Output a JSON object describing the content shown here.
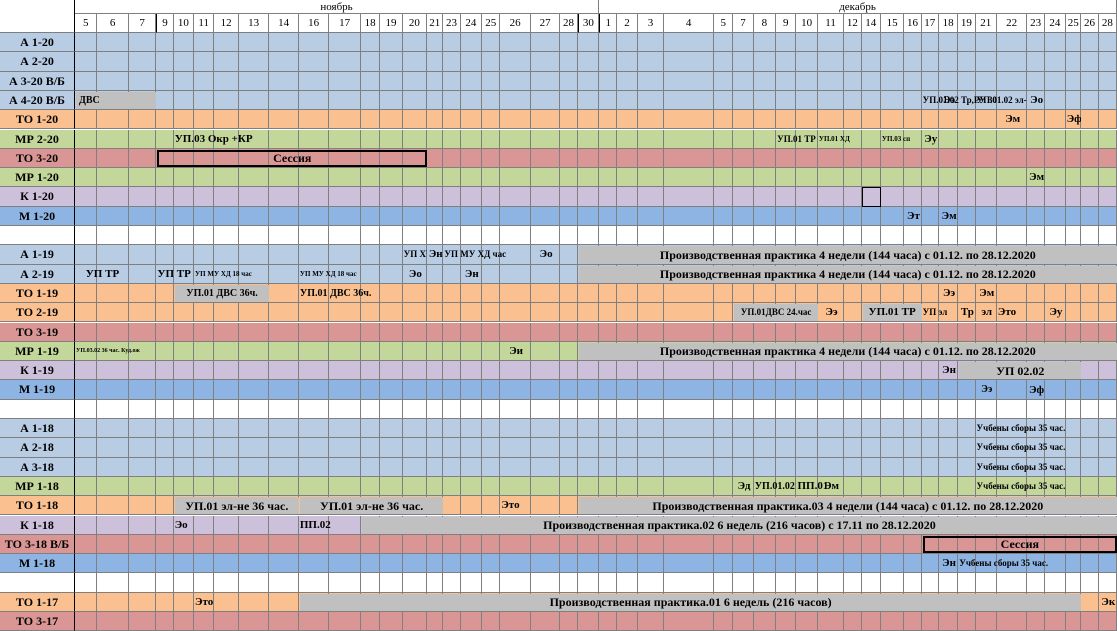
{
  "months": {
    "november": "ноябрь",
    "december": "декабрь"
  },
  "days": [
    "5",
    "6",
    "7",
    "9",
    "10",
    "11",
    "12",
    "13",
    "14",
    "16",
    "17",
    "18",
    "19",
    "20",
    "21",
    "23",
    "24",
    "25",
    "26",
    "27",
    "28",
    "30",
    "1",
    "2",
    "3",
    "4",
    "5",
    "7",
    "8",
    "9",
    "10",
    "11",
    "12",
    "14",
    "15",
    "16",
    "17",
    "18",
    "19",
    "21",
    "22",
    "23",
    "24",
    "25",
    "26",
    "28"
  ],
  "colors": {
    "blue": "#b8cce4",
    "orange": "#fac090",
    "green": "#c4d79b",
    "red": "#da9694",
    "purple": "#ccc0da",
    "dblue": "#8db4e2",
    "gray": "#c0c0c0"
  },
  "rows": [
    {
      "label": "А 1-20",
      "color": "blue"
    },
    {
      "label": "А 2-20",
      "color": "blue"
    },
    {
      "label": "А 3-20 В/Б",
      "color": "blue"
    },
    {
      "label": "А 4-20 В/Б",
      "color": "blue"
    },
    {
      "label": "ТО 1-20",
      "color": "orange"
    },
    {
      "label": "МР 2-20",
      "color": "green"
    },
    {
      "label": "ТО 3-20",
      "color": "red"
    },
    {
      "label": "МР 1-20",
      "color": "green"
    },
    {
      "label": "К 1-20",
      "color": "purple"
    },
    {
      "label": "М 1-20",
      "color": "dblue"
    },
    {
      "label": "",
      "color": "white"
    },
    {
      "label": "А 1-19",
      "color": "blue"
    },
    {
      "label": "А 2-19",
      "color": "blue"
    },
    {
      "label": "ТО 1-19",
      "color": "orange"
    },
    {
      "label": "ТО 2-19",
      "color": "orange"
    },
    {
      "label": "ТО 3-19",
      "color": "red"
    },
    {
      "label": "МР 1-19",
      "color": "green"
    },
    {
      "label": "К 1-19",
      "color": "purple"
    },
    {
      "label": "М 1-19",
      "color": "dblue"
    },
    {
      "label": "",
      "color": "white"
    },
    {
      "label": "А 1-18",
      "color": "blue"
    },
    {
      "label": "А 2-18",
      "color": "blue"
    },
    {
      "label": "А 3-18",
      "color": "blue"
    },
    {
      "label": "МР 1-18",
      "color": "green"
    },
    {
      "label": "ТО 1-18",
      "color": "orange"
    },
    {
      "label": "К 1-18",
      "color": "purple"
    },
    {
      "label": "ТО 3-18 В/Б",
      "color": "red"
    },
    {
      "label": "М 1-18",
      "color": "dblue"
    },
    {
      "label": "",
      "color": "white"
    },
    {
      "label": "ТО 1-17",
      "color": "orange"
    },
    {
      "label": "ТО 3-17",
      "color": "red"
    }
  ],
  "annotations": [
    {
      "r": 3,
      "c0": 0,
      "c1": 3,
      "text": "ДВС",
      "style": "grayl",
      "fs": 10
    },
    {
      "r": 3,
      "c0": 36,
      "c1": 40,
      "text": "УП.01.02 Тр,РУ 30 час",
      "style": "plain",
      "fs": 9
    },
    {
      "r": 3,
      "c0": 37,
      "c1": 38,
      "text": "Ээ",
      "style": "center",
      "fs": 11
    },
    {
      "r": 3,
      "c0": 39,
      "c1": 41,
      "text": "УП.01.02 эл-не",
      "style": "plain",
      "fs": 9
    },
    {
      "r": 3,
      "c0": 41,
      "c1": 42,
      "text": "Эо",
      "style": "center",
      "fs": 11
    },
    {
      "r": 4,
      "c0": 40,
      "c1": 41,
      "text": "Эм",
      "style": "center",
      "fs": 11
    },
    {
      "r": 4,
      "c0": 43,
      "c1": 44,
      "text": "Эф",
      "style": "center",
      "fs": 11
    },
    {
      "r": 5,
      "c0": 4,
      "c1": 9,
      "text": "УП.03 Окр +КР",
      "style": "plain",
      "fs": 11
    },
    {
      "r": 5,
      "c0": 29,
      "c1": 31,
      "text": "УП.01 ТР",
      "style": "plain",
      "fs": 9
    },
    {
      "r": 5,
      "c0": 31,
      "c1": 33,
      "text": "УП.01 ХД",
      "style": "plain",
      "fs": 7
    },
    {
      "r": 5,
      "c0": 34,
      "c1": 36,
      "text": "УП.03 сп",
      "style": "plain",
      "fs": 7
    },
    {
      "r": 5,
      "c0": 36,
      "c1": 37,
      "text": "Эу",
      "style": "center",
      "fs": 11
    },
    {
      "r": 6,
      "c0": 3,
      "c1": 14,
      "text": "Сессия",
      "style": "boxed",
      "fs": 12
    },
    {
      "r": 7,
      "c0": 41,
      "c1": 42,
      "text": "Эм",
      "style": "center",
      "fs": 11
    },
    {
      "r": 9,
      "c0": 35,
      "c1": 36,
      "text": "Эт",
      "style": "center",
      "fs": 11
    },
    {
      "r": 9,
      "c0": 37,
      "c1": 38,
      "text": "Эм",
      "style": "center",
      "fs": 11
    },
    {
      "r": 11,
      "c0": 13,
      "c1": 14,
      "text": "УП ХЧ",
      "style": "plain",
      "fs": 9
    },
    {
      "r": 11,
      "c0": 14,
      "c1": 15,
      "text": "Эн",
      "style": "center",
      "fs": 11
    },
    {
      "r": 11,
      "c0": 15,
      "c1": 19,
      "text": "УП МУ ХД час",
      "style": "plain",
      "fs": 9
    },
    {
      "r": 11,
      "c0": 19,
      "c1": 20,
      "text": "Эо",
      "style": "center",
      "fs": 11
    },
    {
      "r": 11,
      "c0": 21,
      "c1": 46,
      "text": "Производственная практика 4 недели (144 часа) с 01.12. по 28.12.2020",
      "style": "gray",
      "fs": 12
    },
    {
      "r": 12,
      "c0": 0,
      "c1": 2,
      "text": "УП ТР",
      "style": "center",
      "fs": 11
    },
    {
      "r": 12,
      "c0": 3,
      "c1": 5,
      "text": "УП ТР",
      "style": "plain",
      "fs": 11
    },
    {
      "r": 12,
      "c0": 5,
      "c1": 9,
      "text": "УП МУ ХД 18 час",
      "style": "plain",
      "fs": 7
    },
    {
      "r": 12,
      "c0": 9,
      "c1": 13,
      "text": "УП МУ ХД 18 час",
      "style": "plain",
      "fs": 7
    },
    {
      "r": 12,
      "c0": 13,
      "c1": 14,
      "text": "Эо",
      "style": "center",
      "fs": 11
    },
    {
      "r": 12,
      "c0": 16,
      "c1": 17,
      "text": "Эн",
      "style": "center",
      "fs": 11
    },
    {
      "r": 12,
      "c0": 21,
      "c1": 46,
      "text": "Производственная практика 4 недели (144 часа) с 01.12. по 28.12.2020",
      "style": "gray",
      "fs": 12
    },
    {
      "r": 13,
      "c0": 4,
      "c1": 8,
      "text": "УП.01 ДВС 36ч.",
      "style": "gray",
      "fs": 10
    },
    {
      "r": 13,
      "c0": 9,
      "c1": 12,
      "text": "УП.01 ДВС 36ч.",
      "style": "plain",
      "fs": 10
    },
    {
      "r": 13,
      "c0": 37,
      "c1": 38,
      "text": "Ээ",
      "style": "center",
      "fs": 11
    },
    {
      "r": 13,
      "c0": 39,
      "c1": 40,
      "text": "Эм",
      "style": "center",
      "fs": 11
    },
    {
      "r": 14,
      "c0": 27,
      "c1": 31,
      "text": "УП.01ДВС 24.час",
      "style": "gray",
      "fs": 9
    },
    {
      "r": 14,
      "c0": 31,
      "c1": 32,
      "text": "Ээ",
      "style": "center",
      "fs": 11
    },
    {
      "r": 14,
      "c0": 33,
      "c1": 36,
      "text": "УП.01 ТР",
      "style": "gray",
      "fs": 11
    },
    {
      "r": 14,
      "c0": 36,
      "c1": 38,
      "text": "УП эл",
      "style": "plain",
      "fs": 9
    },
    {
      "r": 14,
      "c0": 38,
      "c1": 39,
      "text": "Тр",
      "style": "center",
      "fs": 11
    },
    {
      "r": 14,
      "c0": 39,
      "c1": 40,
      "text": "эл",
      "style": "center",
      "fs": 11
    },
    {
      "r": 14,
      "c0": 40,
      "c1": 42,
      "text": "Это",
      "style": "plain",
      "fs": 11
    },
    {
      "r": 14,
      "c0": 42,
      "c1": 43,
      "text": "Эу",
      "style": "center",
      "fs": 11
    },
    {
      "r": 16,
      "c0": 0,
      "c1": 3,
      "text": "УП.03.02 36 час. Куд.ож",
      "style": "plain",
      "fs": 6
    },
    {
      "r": 16,
      "c0": 18,
      "c1": 19,
      "text": "Эи",
      "style": "center",
      "fs": 11
    },
    {
      "r": 16,
      "c0": 21,
      "c1": 46,
      "text": "Производственная практика 4 недели (144 часа) с 01.12. по 28.12.2020",
      "style": "gray",
      "fs": 12
    },
    {
      "r": 17,
      "c0": 37,
      "c1": 38,
      "text": "Эн",
      "style": "center",
      "fs": 11
    },
    {
      "r": 17,
      "c0": 38,
      "c1": 44,
      "text": "УП 02.02",
      "style": "gray",
      "fs": 12
    },
    {
      "r": 18,
      "c0": 39,
      "c1": 40,
      "text": "Ээ",
      "style": "center",
      "fs": 10
    },
    {
      "r": 18,
      "c0": 41,
      "c1": 42,
      "text": "Эф",
      "style": "center",
      "fs": 11
    },
    {
      "r": 20,
      "c0": 39,
      "c1": 44,
      "text": "Учбены сборы 35 час.",
      "style": "plain",
      "fs": 9
    },
    {
      "r": 21,
      "c0": 39,
      "c1": 44,
      "text": "Учбены сборы 35 час.",
      "style": "plain",
      "fs": 9
    },
    {
      "r": 22,
      "c0": 39,
      "c1": 44,
      "text": "Учбены сборы 35 час.",
      "style": "plain",
      "fs": 9
    },
    {
      "r": 23,
      "c0": 27,
      "c1": 28,
      "text": "Эд",
      "style": "center",
      "fs": 11
    },
    {
      "r": 23,
      "c0": 28,
      "c1": 30,
      "text": "УП.01.02",
      "style": "plain",
      "fs": 10
    },
    {
      "r": 23,
      "c0": 30,
      "c1": 32,
      "text": "ПП.01",
      "style": "plain",
      "fs": 11
    },
    {
      "r": 23,
      "c0": 31,
      "c1": 32,
      "text": "Эм",
      "style": "center",
      "fs": 11
    },
    {
      "r": 23,
      "c0": 39,
      "c1": 44,
      "text": "Учбены сборы 35 час.",
      "style": "plain",
      "fs": 9
    },
    {
      "r": 24,
      "c0": 4,
      "c1": 9,
      "text": "УП.01 эл-не 36 час.",
      "style": "gray",
      "fs": 12
    },
    {
      "r": 24,
      "c0": 9,
      "c1": 15,
      "text": "УП.01 эл-не 36 час.",
      "style": "gray",
      "fs": 12
    },
    {
      "r": 24,
      "c0": 18,
      "c1": 19,
      "text": "Это",
      "style": "plain",
      "fs": 11
    },
    {
      "r": 24,
      "c0": 21,
      "c1": 46,
      "text": "Производственная практика.03 4 недели (144 часа) с 01.12. по 28.12.2020",
      "style": "gray",
      "fs": 12
    },
    {
      "r": 25,
      "c0": 4,
      "c1": 6,
      "text": "Эо",
      "style": "plain",
      "fs": 11
    },
    {
      "r": 25,
      "c0": 9,
      "c1": 12,
      "text": "ПП.02",
      "style": "plain",
      "fs": 11
    },
    {
      "r": 25,
      "c0": 11,
      "c1": 46,
      "text": "Производственная практика.02  6 недель (216 часов) с 17.11 по 28.12.2020",
      "style": "gray",
      "fs": 12
    },
    {
      "r": 26,
      "c0": 36,
      "c1": 46,
      "text": "Сессия",
      "style": "boxed",
      "fs": 12
    },
    {
      "r": 27,
      "c0": 37,
      "c1": 38,
      "text": "Эн",
      "style": "center",
      "fs": 11
    },
    {
      "r": 27,
      "c0": 38,
      "c1": 44,
      "text": "Учбены сборы 35 час.",
      "style": "plain",
      "fs": 9
    },
    {
      "r": 29,
      "c0": 5,
      "c1": 8,
      "text": "Это",
      "style": "plain",
      "fs": 11
    },
    {
      "r": 29,
      "c0": 9,
      "c1": 44,
      "text": "Производственная практика.01 6 недель (216 часов)",
      "style": "gray",
      "fs": 12
    },
    {
      "r": 29,
      "c0": 45,
      "c1": 46,
      "text": "Эк",
      "style": "center",
      "fs": 11
    }
  ]
}
